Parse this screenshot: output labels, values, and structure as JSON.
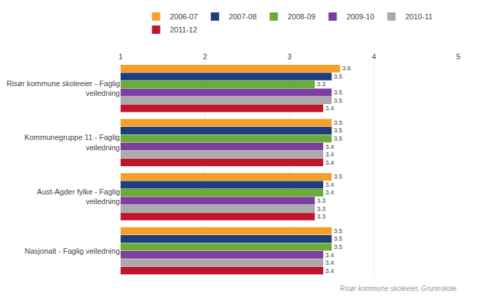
{
  "chart_data": {
    "type": "bar",
    "orientation": "horizontal",
    "categories": [
      "Risør kommune skoleeier - Faglig\nveiledning",
      "Kommunegruppe 11 - Faglig\nveiledning",
      "Aust-Agder fylke - Faglig\nveiledning",
      "Nasjonalt - Faglig veiledning"
    ],
    "series": [
      {
        "name": "2006-07",
        "color": "#F5A02A",
        "values": [
          3.6,
          3.5,
          3.5,
          3.5
        ]
      },
      {
        "name": "2007-08",
        "color": "#1F3E7D",
        "values": [
          3.5,
          3.5,
          3.4,
          3.5
        ]
      },
      {
        "name": "2008-09",
        "color": "#6AAB3A",
        "values": [
          3.3,
          3.5,
          3.4,
          3.5
        ]
      },
      {
        "name": "2009-10",
        "color": "#7B3FA0",
        "values": [
          3.5,
          3.4,
          3.3,
          3.4
        ]
      },
      {
        "name": "2010-11",
        "color": "#AAAAAA",
        "values": [
          3.5,
          3.4,
          3.3,
          3.4
        ]
      },
      {
        "name": "2011-12",
        "color": "#C0152B",
        "values": [
          3.4,
          3.4,
          3.3,
          3.4
        ]
      }
    ],
    "xlim": [
      1,
      5
    ],
    "xticks": [
      1,
      2,
      3,
      4,
      5
    ],
    "grid": true,
    "data_labels": true,
    "legend": "top",
    "annotations": [
      "Risør kommune skoleeier, Grunnskole"
    ]
  }
}
